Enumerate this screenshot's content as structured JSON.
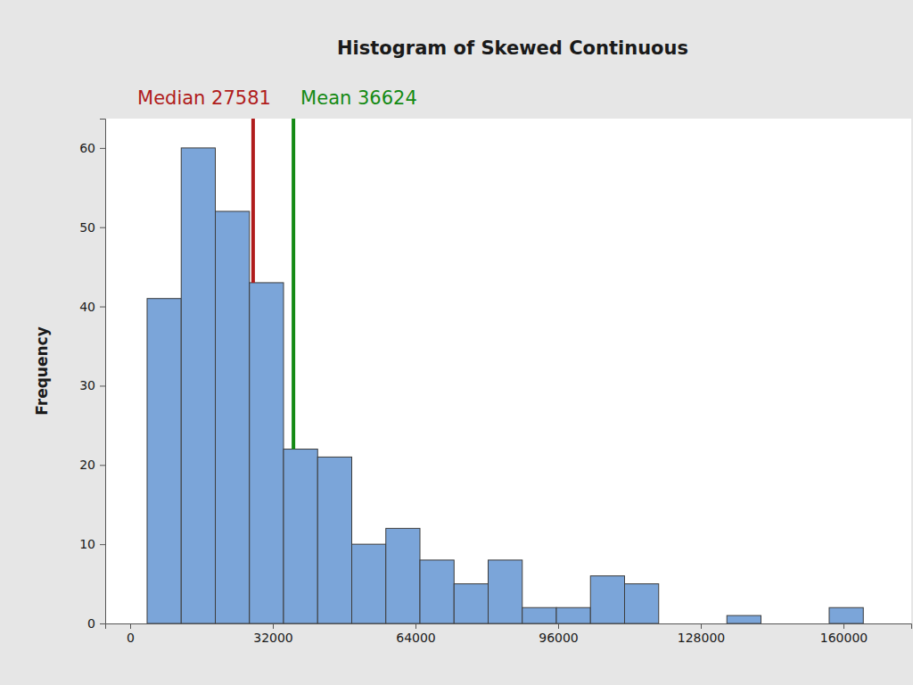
{
  "chart_data": {
    "type": "histogram",
    "title": "Histogram of Skewed Continuous",
    "ylabel": "Frequency",
    "bins": [
      3800,
      11450,
      19100,
      26750,
      34400,
      42050,
      49700,
      57350,
      65000,
      72650,
      80300,
      87950,
      95600,
      103250,
      110900,
      118550,
      126200,
      133850,
      141500,
      149150,
      156800,
      164450
    ],
    "counts": [
      41,
      60,
      52,
      43,
      22,
      21,
      10,
      12,
      8,
      5,
      8,
      2,
      2,
      6,
      5,
      0,
      0,
      1,
      0,
      0,
      2
    ],
    "color": "#7ba5d9",
    "xlim": [
      -5600,
      175200
    ],
    "xticks": [
      0,
      32000,
      64000,
      96000,
      128000,
      160000
    ],
    "ylim": [
      0,
      63.7
    ],
    "yticks": [
      0,
      10,
      20,
      30,
      40,
      50,
      60
    ],
    "reference_lines": [
      {
        "label": "Median 27581",
        "value": 27581,
        "color": "#b01c1c"
      },
      {
        "label": "Mean 36624",
        "value": 36624,
        "color": "#148a14"
      }
    ]
  }
}
